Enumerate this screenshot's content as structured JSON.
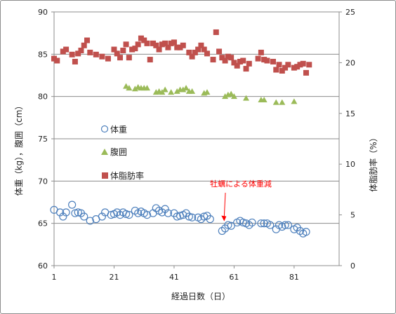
{
  "chart_data": {
    "type": "scatter",
    "xlabel": "経過日数（日）",
    "ylabel_left": "体重（kg），腹囲（cm）",
    "ylabel_right": "体脂肪率（%）",
    "xlim": [
      1,
      96
    ],
    "ylim_left": [
      60,
      90
    ],
    "ylim_right": [
      0,
      25
    ],
    "x_ticks": [
      1,
      21,
      41,
      61,
      81
    ],
    "x_tick_labels": [
      "1",
      "21",
      "41",
      "61",
      "81"
    ],
    "y_left_ticks": [
      60,
      65,
      70,
      75,
      80,
      85,
      90
    ],
    "y_left_tick_labels": [
      "60",
      "65",
      "70",
      "75",
      "80",
      "85",
      "90"
    ],
    "y_right_ticks": [
      0,
      5,
      10,
      15,
      20,
      25
    ],
    "y_right_tick_labels": [
      "0",
      "5",
      "10",
      "15",
      "20",
      "25"
    ],
    "grid": "horizontal",
    "legend": "inside-left",
    "annotation": {
      "text": "牡蠣による体重減",
      "arrow_to": {
        "x": 57,
        "y": 65
      }
    },
    "series": [
      {
        "name": "体重",
        "axis": "left",
        "marker": "open-circle",
        "color": "#4f81bd",
        "points": [
          [
            1,
            66.6
          ],
          [
            3,
            66.3
          ],
          [
            4,
            65.8
          ],
          [
            5,
            66.3
          ],
          [
            7,
            67.2
          ],
          [
            8,
            66.2
          ],
          [
            9,
            66.3
          ],
          [
            10,
            66.2
          ],
          [
            11,
            65.8
          ],
          [
            13,
            65.3
          ],
          [
            15,
            65.5
          ],
          [
            17,
            65.8
          ],
          [
            18,
            66.3
          ],
          [
            20,
            66.0
          ],
          [
            21,
            66.1
          ],
          [
            22,
            66.3
          ],
          [
            23,
            66.0
          ],
          [
            24,
            66.3
          ],
          [
            25,
            66.1
          ],
          [
            26,
            66.0
          ],
          [
            28,
            66.5
          ],
          [
            29,
            66.2
          ],
          [
            30,
            66.4
          ],
          [
            31,
            66.2
          ],
          [
            32,
            66.0
          ],
          [
            34,
            66.2
          ],
          [
            35,
            66.8
          ],
          [
            36,
            66.5
          ],
          [
            37,
            66.3
          ],
          [
            38,
            66.7
          ],
          [
            39,
            66.2
          ],
          [
            41,
            66.2
          ],
          [
            42,
            65.8
          ],
          [
            43,
            65.9
          ],
          [
            44,
            66.0
          ],
          [
            45,
            66.2
          ],
          [
            46,
            65.8
          ],
          [
            47,
            65.7
          ],
          [
            49,
            65.7
          ],
          [
            50,
            65.5
          ],
          [
            51,
            65.8
          ],
          [
            52,
            65.9
          ],
          [
            53,
            65.5
          ],
          [
            57,
            64.1
          ],
          [
            58,
            64.4
          ],
          [
            59,
            64.8
          ],
          [
            60,
            64.7
          ],
          [
            62,
            65.1
          ],
          [
            63,
            65.3
          ],
          [
            64,
            65.1
          ],
          [
            65,
            65.0
          ],
          [
            66,
            64.8
          ],
          [
            67,
            65.1
          ],
          [
            70,
            65.0
          ],
          [
            71,
            65.0
          ],
          [
            72,
            65.0
          ],
          [
            73,
            64.8
          ],
          [
            75,
            64.3
          ],
          [
            76,
            64.8
          ],
          [
            77,
            64.6
          ],
          [
            78,
            64.8
          ],
          [
            79,
            64.8
          ],
          [
            81,
            64.3
          ],
          [
            82,
            64.5
          ],
          [
            83,
            64.1
          ],
          [
            84,
            63.8
          ],
          [
            85,
            64.0
          ]
        ]
      },
      {
        "name": "腹囲",
        "axis": "left",
        "marker": "triangle",
        "color": "#9bbb59",
        "points": [
          [
            25,
            81.2
          ],
          [
            26,
            81.0
          ],
          [
            28,
            80.9
          ],
          [
            29,
            81.1
          ],
          [
            30,
            81.0
          ],
          [
            31,
            81.0
          ],
          [
            32,
            81.0
          ],
          [
            35,
            80.5
          ],
          [
            36,
            80.6
          ],
          [
            37,
            80.5
          ],
          [
            38,
            80.8
          ],
          [
            40,
            80.5
          ],
          [
            42,
            80.6
          ],
          [
            43,
            80.8
          ],
          [
            44,
            80.8
          ],
          [
            45,
            81.0
          ],
          [
            46,
            80.6
          ],
          [
            47,
            80.6
          ],
          [
            51,
            80.4
          ],
          [
            52,
            80.5
          ],
          [
            58,
            80.0
          ],
          [
            59,
            80.2
          ],
          [
            60,
            80.3
          ],
          [
            61,
            80.0
          ],
          [
            65,
            79.8
          ],
          [
            70,
            79.6
          ],
          [
            71,
            79.6
          ],
          [
            75,
            79.3
          ],
          [
            77,
            79.3
          ],
          [
            81,
            79.4
          ]
        ]
      },
      {
        "name": "体脂肪率",
        "axis": "right",
        "marker": "square",
        "color": "#c0504d",
        "points": [
          [
            1,
            20.4
          ],
          [
            2,
            20.2
          ],
          [
            4,
            21.1
          ],
          [
            5,
            21.3
          ],
          [
            7,
            20.8
          ],
          [
            8,
            20.1
          ],
          [
            9,
            20.9
          ],
          [
            10,
            21.2
          ],
          [
            11,
            21.7
          ],
          [
            12,
            22.2
          ],
          [
            13,
            21.0
          ],
          [
            15,
            20.8
          ],
          [
            17,
            20.6
          ],
          [
            19,
            20.4
          ],
          [
            21,
            21.3
          ],
          [
            22,
            20.9
          ],
          [
            23,
            20.5
          ],
          [
            24,
            21.2
          ],
          [
            25,
            21.8
          ],
          [
            26,
            20.5
          ],
          [
            27,
            21.3
          ],
          [
            28,
            21.4
          ],
          [
            29,
            21.8
          ],
          [
            30,
            22.4
          ],
          [
            31,
            22.2
          ],
          [
            32,
            21.9
          ],
          [
            33,
            20.3
          ],
          [
            34,
            21.9
          ],
          [
            35,
            21.7
          ],
          [
            36,
            21.3
          ],
          [
            37,
            21.8
          ],
          [
            38,
            21.9
          ],
          [
            39,
            21.5
          ],
          [
            40,
            21.9
          ],
          [
            41,
            22.0
          ],
          [
            42,
            21.5
          ],
          [
            43,
            21.5
          ],
          [
            44,
            21.7
          ],
          [
            46,
            21.0
          ],
          [
            47,
            20.6
          ],
          [
            48,
            21.0
          ],
          [
            49,
            21.3
          ],
          [
            50,
            21.7
          ],
          [
            51,
            21.3
          ],
          [
            52,
            20.9
          ],
          [
            54,
            20.3
          ],
          [
            55,
            23.0
          ],
          [
            56,
            21.1
          ],
          [
            57,
            20.5
          ],
          [
            58,
            20.2
          ],
          [
            59,
            20.6
          ],
          [
            60,
            20.5
          ],
          [
            61,
            20.0
          ],
          [
            62,
            19.7
          ],
          [
            63,
            20.1
          ],
          [
            64,
            20.2
          ],
          [
            65,
            19.4
          ],
          [
            66,
            19.9
          ],
          [
            69,
            20.4
          ],
          [
            70,
            21.0
          ],
          [
            71,
            20.3
          ],
          [
            72,
            20.2
          ],
          [
            74,
            20.1
          ],
          [
            75,
            19.3
          ],
          [
            76,
            19.8
          ],
          [
            77,
            19.2
          ],
          [
            78,
            19.5
          ],
          [
            79,
            19.8
          ],
          [
            81,
            19.5
          ],
          [
            82,
            19.6
          ],
          [
            83,
            19.8
          ],
          [
            84,
            19.9
          ],
          [
            85,
            19.0
          ],
          [
            86,
            19.8
          ]
        ]
      }
    ]
  }
}
